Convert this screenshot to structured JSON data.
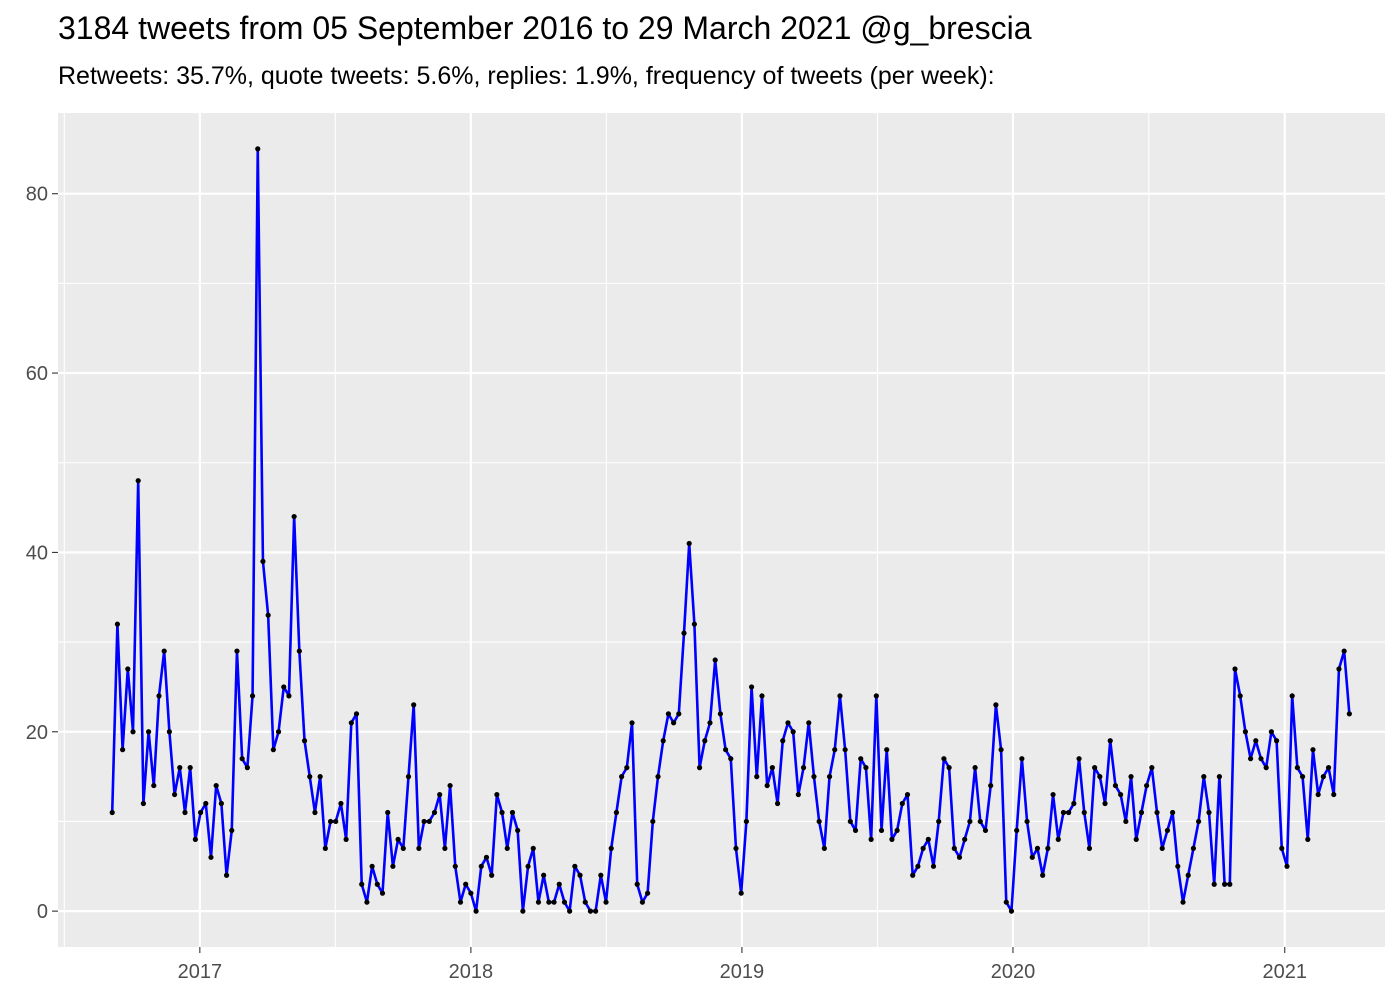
{
  "chart_data": {
    "type": "line",
    "title": "3184 tweets from 05 September 2016 to 29 March 2021 @g_brescia",
    "subtitle": "Retweets: 35.7%, quote tweets: 5.6%, replies: 1.9%, frequency of tweets (per week):",
    "xlabel": "",
    "ylabel": "",
    "x_ticks": [
      "2017",
      "2018",
      "2019",
      "2020",
      "2021"
    ],
    "y_ticks": [
      "0",
      "20",
      "40",
      "60",
      "80"
    ],
    "ylim": [
      -4,
      89
    ],
    "xlim": [
      "2016-06-24",
      "2021-05-16"
    ],
    "grid": true,
    "legend": "none",
    "colors": {
      "line": "#0000ff",
      "points": "#000000",
      "panel": "#ebebeb",
      "grid": "#ffffff"
    },
    "series": [
      {
        "start_date": "2016-09-05",
        "interval": "week",
        "values": [
          11,
          32,
          18,
          27,
          20,
          48,
          12,
          20,
          14,
          24,
          29,
          20,
          13,
          16,
          11,
          16,
          8,
          11,
          12,
          6,
          14,
          12,
          4,
          9,
          29,
          17,
          16,
          24,
          85,
          39,
          33,
          18,
          20,
          25,
          24,
          44,
          29,
          19,
          15,
          11,
          15,
          7,
          10,
          10,
          12,
          8,
          21,
          22,
          3,
          1,
          5,
          3,
          2,
          11,
          5,
          8,
          7,
          15,
          23,
          7,
          10,
          10,
          11,
          13,
          7,
          14,
          5,
          1,
          3,
          2,
          0,
          5,
          6,
          4,
          13,
          11,
          7,
          11,
          9,
          0,
          5,
          7,
          1,
          4,
          1,
          1,
          3,
          1,
          0,
          5,
          4,
          1,
          0,
          0,
          4,
          1,
          7,
          11,
          15,
          16,
          21,
          3,
          1,
          2,
          10,
          15,
          19,
          22,
          21,
          22,
          31,
          41,
          32,
          16,
          19,
          21,
          28,
          22,
          18,
          17,
          7,
          2,
          10,
          25,
          15,
          24,
          14,
          16,
          12,
          19,
          21,
          20,
          13,
          16,
          21,
          15,
          10,
          7,
          15,
          18,
          24,
          18,
          10,
          9,
          17,
          16,
          8,
          24,
          9,
          18,
          8,
          9,
          12,
          13,
          4,
          5,
          7,
          8,
          5,
          10,
          17,
          16,
          7,
          6,
          8,
          10,
          16,
          10,
          9,
          14,
          23,
          18,
          1,
          0,
          9,
          17,
          10,
          6,
          7,
          4,
          7,
          13,
          8,
          11,
          11,
          12,
          17,
          11,
          7,
          16,
          15,
          12,
          19,
          14,
          13,
          10,
          15,
          8,
          11,
          14,
          16,
          11,
          7,
          9,
          11,
          5,
          1,
          4,
          7,
          10,
          15,
          11,
          3,
          15,
          3,
          3,
          27,
          24,
          20,
          17,
          19,
          17,
          16,
          20,
          19,
          7,
          5,
          24,
          16,
          15,
          8,
          18,
          13,
          15,
          16,
          13,
          27,
          29,
          22
        ]
      }
    ]
  }
}
